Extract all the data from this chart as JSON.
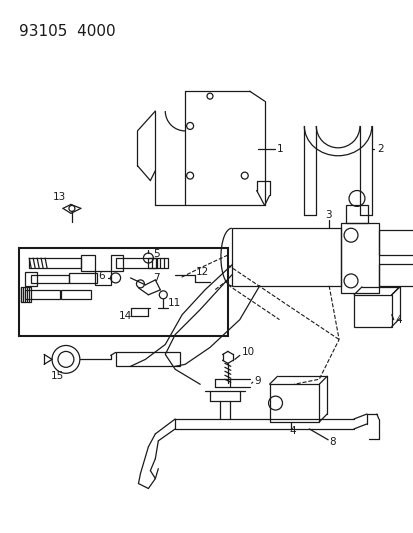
{
  "title": "93105  4000",
  "bg_color": "#ffffff",
  "line_color": "#1a1a1a",
  "title_fontsize": 11,
  "label_fontsize": 7.5
}
